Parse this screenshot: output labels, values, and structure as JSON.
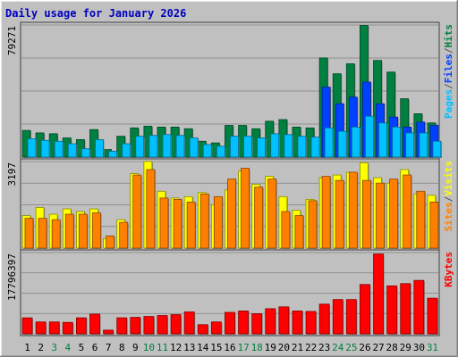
{
  "chart_data": {
    "type": "bar",
    "title": "Daily usage for January 2026",
    "categories": [
      "1",
      "2",
      "3",
      "4",
      "5",
      "6",
      "7",
      "8",
      "9",
      "10",
      "11",
      "12",
      "13",
      "14",
      "15",
      "16",
      "17",
      "18",
      "19",
      "20",
      "21",
      "22",
      "23",
      "24",
      "25",
      "26",
      "27",
      "28",
      "29",
      "30",
      "31"
    ],
    "weekend_days": [
      "3",
      "4",
      "10",
      "11",
      "17",
      "18",
      "24",
      "25",
      "31"
    ],
    "panels": [
      {
        "name": "hits-panel",
        "max_label": "79271",
        "ylim": [
          0,
          79271
        ],
        "legend": [
          {
            "text": "Pages",
            "color": "#00c0ff"
          },
          {
            "text": "/",
            "color": "#555555"
          },
          {
            "text": "Files",
            "color": "#0040ff"
          },
          {
            "text": "/",
            "color": "#555555"
          },
          {
            "text": "Hits",
            "color": "#008040"
          }
        ],
        "series": [
          {
            "name": "Hits",
            "color": "#008040",
            "values": [
              16000,
              14500,
              14000,
              11500,
              10500,
              16500,
              4500,
              12500,
              17500,
              18500,
              18000,
              18000,
              17000,
              9500,
              8500,
              19000,
              19000,
              17000,
              21500,
              22500,
              18000,
              17500,
              59500,
              50000,
              56000,
              79000,
              58000,
              51000,
              35000,
              26000,
              20500
            ]
          },
          {
            "name": "Files",
            "color": "#0040ff",
            "values": [
              0,
              0,
              0,
              0,
              0,
              0,
              0,
              0,
              0,
              0,
              0,
              0,
              0,
              0,
              0,
              0,
              0,
              0,
              0,
              0,
              0,
              0,
              42000,
              32000,
              36000,
              45000,
              32000,
              24000,
              18000,
              21000,
              19000
            ]
          },
          {
            "name": "Pages",
            "color": "#00c0ff",
            "values": [
              11000,
              10000,
              9500,
              8000,
              5000,
              10500,
              3500,
              8000,
              12500,
              13000,
              13500,
              13000,
              11500,
              7500,
              6500,
              12500,
              12500,
              11500,
              14000,
              13500,
              12500,
              12000,
              17500,
              15500,
              18000,
              24500,
              20500,
              18000,
              14500,
              14500,
              9500
            ]
          }
        ]
      },
      {
        "name": "visits-panel",
        "max_label": "3197",
        "ylim": [
          0,
          3197
        ],
        "legend": [
          {
            "text": "Sites",
            "color": "#ff8000"
          },
          {
            "text": "/",
            "color": "#555555"
          },
          {
            "text": "Visits",
            "color": "#ffff00"
          }
        ],
        "series": [
          {
            "name": "Visits",
            "color": "#ffff00",
            "values": [
              1200,
              1500,
              1250,
              1450,
              1350,
              1450,
              350,
              1050,
              2750,
              3200,
              2100,
              1850,
              1900,
              2050,
              1600,
              2150,
              2850,
              2350,
              2650,
              1900,
              1400,
              1800,
              2600,
              2700,
              2800,
              3150,
              2600,
              2400,
              2900,
              2000,
              1950
            ]
          },
          {
            "name": "Sites",
            "color": "#ff8000",
            "values": [
              1100,
              1100,
              1050,
              1250,
              1250,
              1300,
              450,
              950,
              2700,
              2900,
              1850,
              1800,
              1700,
              2000,
              1900,
              2550,
              2950,
              2250,
              2550,
              1350,
              1200,
              1750,
              2650,
              2500,
              2800,
              2500,
              2400,
              2550,
              2700,
              2100,
              1700
            ]
          }
        ]
      },
      {
        "name": "kbytes-panel",
        "max_label": "17796397",
        "ylim": [
          0,
          17796397
        ],
        "legend": [
          {
            "text": "KBytes",
            "color": "#ff0000"
          }
        ],
        "series": [
          {
            "name": "KBytes",
            "color": "#ff0000",
            "values": [
              3500000,
              2600000,
              2600000,
              2500000,
              3500000,
              4300000,
              800000,
              3500000,
              3600000,
              3800000,
              4000000,
              4200000,
              4800000,
              2000000,
              2600000,
              4700000,
              5000000,
              4400000,
              5500000,
              5900000,
              5000000,
              4900000,
              6500000,
              7500000,
              7500000,
              10800000,
              17500000,
              10500000,
              11000000,
              11700000,
              7800000
            ]
          }
        ]
      }
    ]
  }
}
